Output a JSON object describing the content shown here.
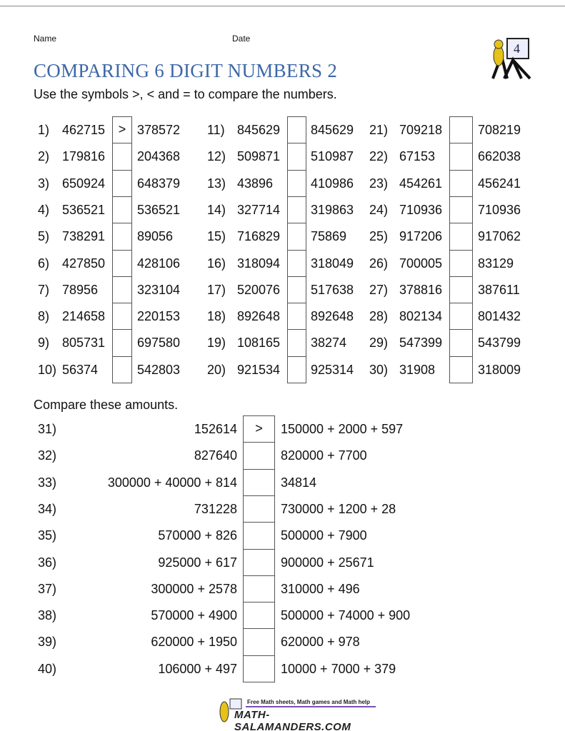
{
  "header": {
    "name_label": "Name",
    "date_label": "Date",
    "title": "COMPARING 6 DIGIT NUMBERS 2",
    "instructions": "Use the symbols >, < and = to compare the numbers.",
    "logo_grade": "4"
  },
  "section1": {
    "items": [
      {
        "num": "1)",
        "left": "462715",
        "answer": ">",
        "right": "378572"
      },
      {
        "num": "2)",
        "left": "179816",
        "answer": "",
        "right": "204368"
      },
      {
        "num": "3)",
        "left": "650924",
        "answer": "",
        "right": "648379"
      },
      {
        "num": "4)",
        "left": "536521",
        "answer": "",
        "right": "536521"
      },
      {
        "num": "5)",
        "left": "738291",
        "answer": "",
        "right": "89056"
      },
      {
        "num": "6)",
        "left": "427850",
        "answer": "",
        "right": "428106"
      },
      {
        "num": "7)",
        "left": "78956",
        "answer": "",
        "right": "323104"
      },
      {
        "num": "8)",
        "left": "214658",
        "answer": "",
        "right": "220153"
      },
      {
        "num": "9)",
        "left": "805731",
        "answer": "",
        "right": "697580"
      },
      {
        "num": "10)",
        "left": "56374",
        "answer": "",
        "right": "542803"
      },
      {
        "num": "11)",
        "left": "845629",
        "answer": "",
        "right": "845629"
      },
      {
        "num": "12)",
        "left": "509871",
        "answer": "",
        "right": "510987"
      },
      {
        "num": "13)",
        "left": "43896",
        "answer": "",
        "right": "410986"
      },
      {
        "num": "14)",
        "left": "327714",
        "answer": "",
        "right": "319863"
      },
      {
        "num": "15)",
        "left": "716829",
        "answer": "",
        "right": "75869"
      },
      {
        "num": "16)",
        "left": "318094",
        "answer": "",
        "right": "318049"
      },
      {
        "num": "17)",
        "left": "520076",
        "answer": "",
        "right": "517638"
      },
      {
        "num": "18)",
        "left": "892648",
        "answer": "",
        "right": "892648"
      },
      {
        "num": "19)",
        "left": "108165",
        "answer": "",
        "right": "38274"
      },
      {
        "num": "20)",
        "left": "921534",
        "answer": "",
        "right": "925314"
      },
      {
        "num": "21)",
        "left": "709218",
        "answer": "",
        "right": "708219"
      },
      {
        "num": "22)",
        "left": "67153",
        "answer": "",
        "right": "662038"
      },
      {
        "num": "23)",
        "left": "454261",
        "answer": "",
        "right": "456241"
      },
      {
        "num": "24)",
        "left": "710936",
        "answer": "",
        "right": "710936"
      },
      {
        "num": "25)",
        "left": "917206",
        "answer": "",
        "right": "917062"
      },
      {
        "num": "26)",
        "left": "700005",
        "answer": "",
        "right": "83129"
      },
      {
        "num": "27)",
        "left": "378816",
        "answer": "",
        "right": "387611"
      },
      {
        "num": "28)",
        "left": "802134",
        "answer": "",
        "right": "801432"
      },
      {
        "num": "29)",
        "left": "547399",
        "answer": "",
        "right": "543799"
      },
      {
        "num": "30)",
        "left": "31908",
        "answer": "",
        "right": "318009"
      }
    ]
  },
  "section2": {
    "heading": "Compare these amounts.",
    "items": [
      {
        "num": "31)",
        "left": "152614",
        "answer": ">",
        "right": "150000 + 2000 + 597"
      },
      {
        "num": "32)",
        "left": "827640",
        "answer": "",
        "right": "820000 + 7700"
      },
      {
        "num": "33)",
        "left": "300000 + 40000 + 814",
        "answer": "",
        "right": "34814"
      },
      {
        "num": "34)",
        "left": "731228",
        "answer": "",
        "right": "730000 + 1200 + 28"
      },
      {
        "num": "35)",
        "left": "570000 + 826",
        "answer": "",
        "right": "500000 + 7900"
      },
      {
        "num": "36)",
        "left": "925000 + 617",
        "answer": "",
        "right": "900000 + 25671"
      },
      {
        "num": "37)",
        "left": "300000 + 2578",
        "answer": "",
        "right": "310000 + 496"
      },
      {
        "num": "38)",
        "left": "570000 + 4900",
        "answer": "",
        "right": "500000 + 74000 + 900"
      },
      {
        "num": "39)",
        "left": "620000 + 1950",
        "answer": "",
        "right": "620000 + 978"
      },
      {
        "num": "40)",
        "left": "106000 + 497",
        "answer": "",
        "right": "10000 + 7000 + 379"
      }
    ]
  },
  "footer": {
    "tagline": "Free Math sheets, Math games and Math help",
    "site": "MATH-SALAMANDERS.COM"
  }
}
